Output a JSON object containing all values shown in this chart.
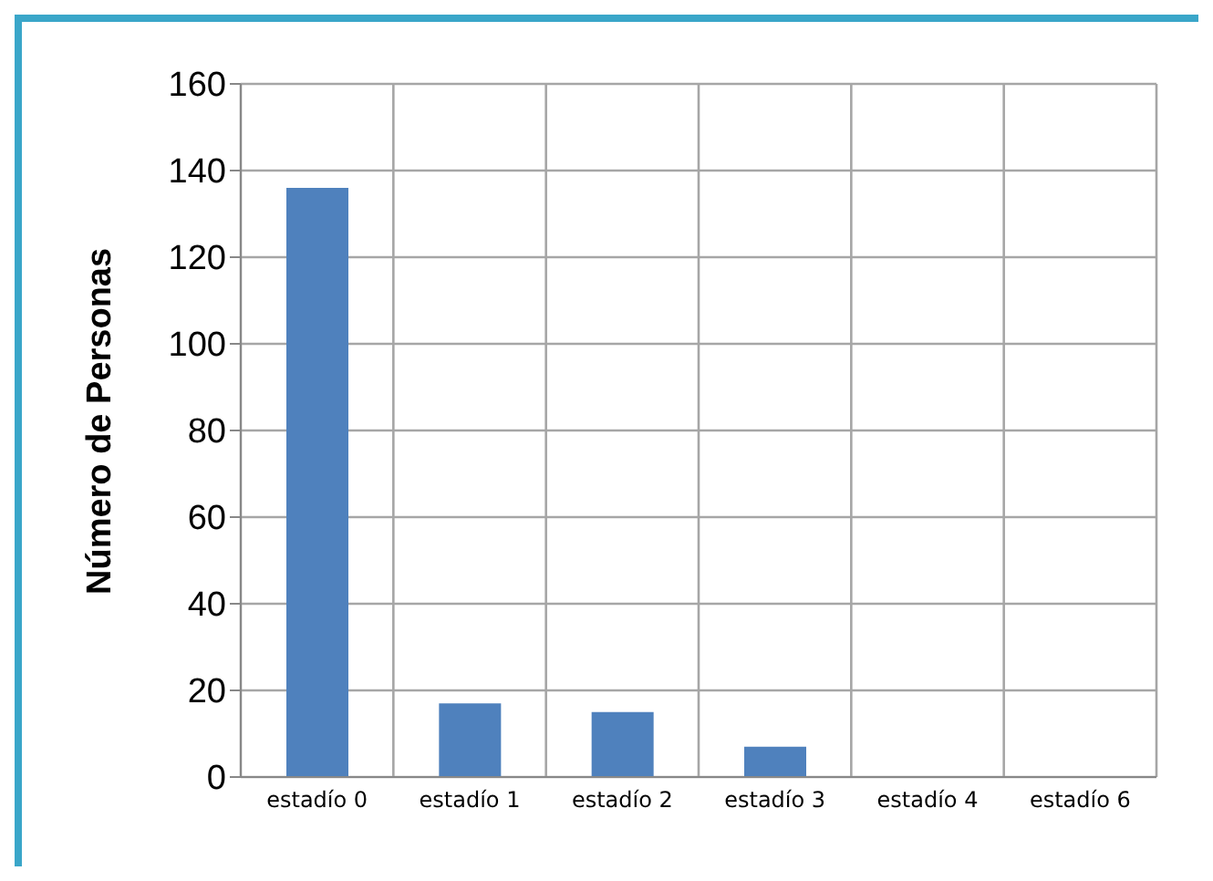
{
  "chart_data": {
    "type": "bar",
    "ylabel": "Número de Personas",
    "categories": [
      "estadío 0",
      "estadío 1",
      "estadío 2",
      "estadío 3",
      "estadío 4",
      "estadío 6"
    ],
    "values": [
      136,
      17,
      15,
      7,
      0,
      0
    ],
    "color": "#4f81bd",
    "ylim": [
      0,
      160
    ],
    "yticks": [
      0,
      20,
      40,
      60,
      80,
      100,
      120,
      140,
      160
    ],
    "grid": true
  }
}
